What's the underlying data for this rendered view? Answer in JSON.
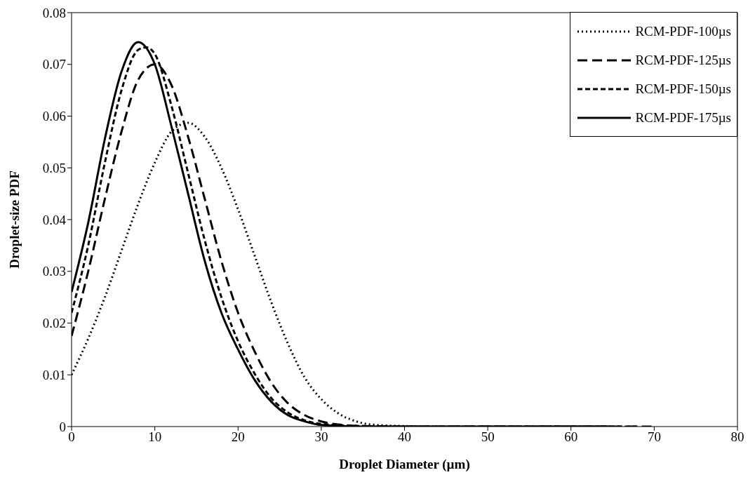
{
  "chart_data": {
    "type": "line",
    "xlabel": "Droplet Diameter (µm)",
    "ylabel": "Droplet-size PDF",
    "xlim": [
      0,
      80
    ],
    "xticks": [
      0,
      10,
      20,
      30,
      40,
      50,
      60,
      70,
      80
    ],
    "ylim": [
      0,
      0.08
    ],
    "yticks": [
      0,
      0.01,
      0.02,
      0.03,
      0.04,
      0.05,
      0.06,
      0.07,
      0.08
    ],
    "grid": false,
    "legend": "top right",
    "marker": "none",
    "series": [
      {
        "name": "RCM-PDF-100µs",
        "color": "#000000",
        "line_style": "dotted",
        "x": [
          0,
          2,
          4,
          6,
          8,
          10,
          12,
          14,
          16,
          18,
          20,
          22,
          24,
          26,
          28,
          30,
          32,
          34,
          36,
          40,
          45,
          50,
          55,
          60,
          65
        ],
        "values": [
          0.01,
          0.017,
          0.025,
          0.034,
          0.043,
          0.051,
          0.057,
          0.0587,
          0.056,
          0.05,
          0.042,
          0.033,
          0.024,
          0.016,
          0.0095,
          0.0053,
          0.0026,
          0.0011,
          0.0004,
          0.0001,
          0,
          0,
          0,
          0,
          0
        ]
      },
      {
        "name": "RCM-PDF-125µs",
        "color": "#000000",
        "line_style": "dashed",
        "x": [
          0,
          2,
          4,
          6,
          8,
          10,
          12,
          14,
          16,
          18,
          20,
          22,
          24,
          26,
          28,
          30,
          32,
          35,
          40,
          50,
          60,
          70
        ],
        "values": [
          0.0175,
          0.03,
          0.044,
          0.057,
          0.067,
          0.07,
          0.066,
          0.056,
          0.044,
          0.032,
          0.022,
          0.0145,
          0.0085,
          0.0045,
          0.0022,
          0.001,
          0.0004,
          0.0001,
          0,
          0,
          0,
          0
        ]
      },
      {
        "name": "RCM-PDF-150µs",
        "color": "#000000",
        "line_style": "dashed",
        "x": [
          0,
          2,
          4,
          6,
          8,
          9,
          10,
          12,
          14,
          16,
          18,
          20,
          22,
          24,
          26,
          28,
          30,
          35,
          40,
          50,
          60,
          68
        ],
        "values": [
          0.022,
          0.035,
          0.051,
          0.065,
          0.0728,
          0.0733,
          0.072,
          0.062,
          0.049,
          0.036,
          0.025,
          0.0165,
          0.0102,
          0.0055,
          0.0027,
          0.0012,
          0.0005,
          0.0001,
          0,
          0,
          0,
          0
        ]
      },
      {
        "name": "RCM-PDF-175µs",
        "color": "#000000",
        "line_style": "solid",
        "x": [
          0,
          2,
          4,
          6,
          8,
          10,
          12,
          14,
          16,
          18,
          20,
          22,
          24,
          26,
          28,
          30,
          35,
          40,
          50,
          60,
          65
        ],
        "values": [
          0.026,
          0.0394,
          0.0556,
          0.0686,
          0.0743,
          0.07,
          0.058,
          0.045,
          0.032,
          0.022,
          0.0149,
          0.009,
          0.0048,
          0.0022,
          0.001,
          0.0003,
          0,
          0,
          0,
          0,
          0
        ]
      }
    ]
  }
}
